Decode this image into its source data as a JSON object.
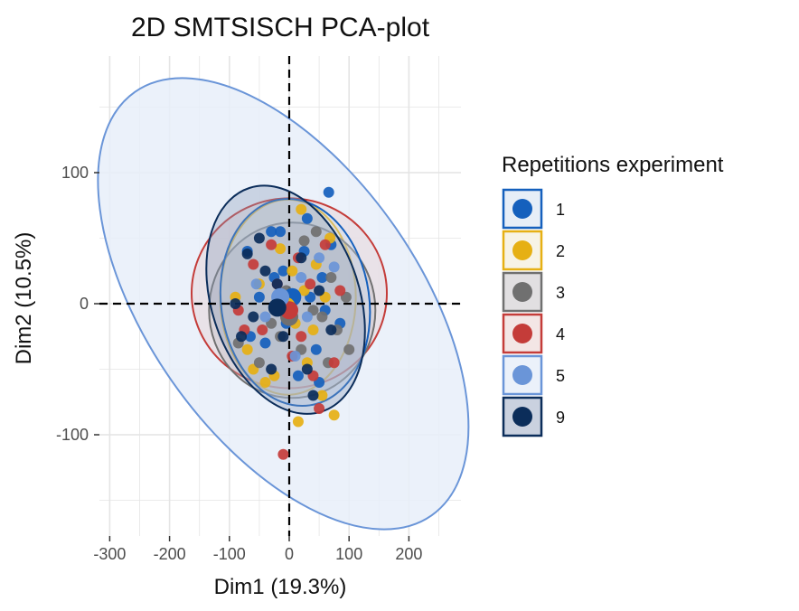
{
  "chart_data": {
    "type": "scatter",
    "title": "2D SMTSISCH PCA-plot",
    "xlabel": "Dim1 (19.3%)",
    "ylabel": "Dim2 (10.5%)",
    "xlim": [
      -305,
      280
    ],
    "ylim": [
      -180,
      192
    ],
    "x_ticks": [
      -300,
      -200,
      -100,
      0,
      100,
      200
    ],
    "y_ticks": [
      -100,
      0,
      100
    ],
    "grid": true,
    "legend": {
      "title": "Repetitions experiment",
      "placement": "right",
      "entries": [
        {
          "label": "1",
          "color": "#1560bd"
        },
        {
          "label": "2",
          "color": "#e6b014"
        },
        {
          "label": "3",
          "color": "#707070"
        },
        {
          "label": "4",
          "color": "#c43c39"
        },
        {
          "label": "5",
          "color": "#6a95d8"
        },
        {
          "label": "9",
          "color": "#0b2d5a"
        }
      ]
    },
    "series": [
      {
        "name": "1",
        "color": "#1560bd",
        "fill": "#c9d9ee",
        "centroid": [
          5,
          5
        ],
        "ellipse": {
          "cx": 10,
          "cy": 1,
          "rx": 82,
          "ry": 115,
          "angle": -8
        },
        "points": [
          [
            66,
            85
          ],
          [
            -50,
            5
          ],
          [
            -65,
            -25
          ],
          [
            -15,
            55
          ],
          [
            25,
            40
          ],
          [
            35,
            5
          ],
          [
            55,
            20
          ],
          [
            -40,
            -30
          ],
          [
            70,
            45
          ],
          [
            -5,
            -15
          ],
          [
            45,
            -35
          ],
          [
            -25,
            20
          ],
          [
            85,
            -15
          ],
          [
            15,
            -55
          ],
          [
            -70,
            40
          ],
          [
            30,
            65
          ],
          [
            -10,
            25
          ],
          [
            60,
            -5
          ],
          [
            -30,
            55
          ],
          [
            50,
            -60
          ]
        ]
      },
      {
        "name": "2",
        "color": "#e6b014",
        "fill": "#ede4c6",
        "centroid": [
          -5,
          -2
        ],
        "ellipse": {
          "cx": -2,
          "cy": 5,
          "rx": 75,
          "ry": 108,
          "angle": 0
        },
        "points": [
          [
            20,
            72
          ],
          [
            -50,
            15
          ],
          [
            40,
            -20
          ],
          [
            -60,
            -50
          ],
          [
            5,
            25
          ],
          [
            -25,
            -55
          ],
          [
            68,
            50
          ],
          [
            -15,
            42
          ],
          [
            55,
            -70
          ],
          [
            -90,
            5
          ],
          [
            30,
            -45
          ],
          [
            15,
            -90
          ],
          [
            75,
            -85
          ],
          [
            -40,
            -60
          ],
          [
            10,
            -15
          ],
          [
            45,
            30
          ],
          [
            -70,
            -35
          ],
          [
            25,
            10
          ],
          [
            -20,
            -5
          ],
          [
            60,
            5
          ]
        ]
      },
      {
        "name": "3",
        "color": "#707070",
        "fill": "#bdb8bc",
        "centroid": [
          0,
          -10
        ],
        "ellipse": {
          "cx": 5,
          "cy": -5,
          "rx": 92,
          "ry": 97,
          "angle": 0
        },
        "points": [
          [
            80,
            -20
          ],
          [
            95,
            5
          ],
          [
            -30,
            -15
          ],
          [
            45,
            55
          ],
          [
            65,
            -45
          ],
          [
            -15,
            -25
          ],
          [
            25,
            48
          ],
          [
            -85,
            -30
          ],
          [
            55,
            -10
          ],
          [
            -5,
            10
          ],
          [
            100,
            -35
          ],
          [
            40,
            -5
          ],
          [
            -50,
            -45
          ],
          [
            70,
            20
          ],
          [
            20,
            -35
          ]
        ]
      },
      {
        "name": "4",
        "color": "#c43c39",
        "fill": "#e4c7c6",
        "centroid": [
          0,
          -5
        ],
        "ellipse": {
          "cx": 0,
          "cy": 8,
          "rx": 108,
          "ry": 105,
          "angle": 0
        },
        "points": [
          [
            -10,
            -115
          ],
          [
            60,
            45
          ],
          [
            -45,
            -20
          ],
          [
            20,
            -25
          ],
          [
            -85,
            -5
          ],
          [
            35,
            15
          ],
          [
            -30,
            45
          ],
          [
            75,
            -45
          ],
          [
            5,
            -40
          ],
          [
            -60,
            30
          ],
          [
            50,
            -80
          ],
          [
            -20,
            15
          ],
          [
            85,
            10
          ],
          [
            15,
            35
          ],
          [
            -75,
            -20
          ],
          [
            40,
            -55
          ]
        ]
      },
      {
        "name": "5",
        "color": "#6a95d8",
        "fill": "#e8eff9",
        "centroid": [
          -15,
          5
        ],
        "ellipse": {
          "cx": -10,
          "cy": 0,
          "rx": 286,
          "ry": 150,
          "angle": 55
        },
        "points": [
          [
            75,
            28
          ],
          [
            -20,
            5
          ],
          [
            10,
            -40
          ],
          [
            -55,
            15
          ],
          [
            30,
            -10
          ],
          [
            50,
            35
          ],
          [
            -40,
            -10
          ],
          [
            20,
            20
          ]
        ]
      },
      {
        "name": "9",
        "color": "#0b2d5a",
        "fill": "#8a9ab8",
        "centroid": [
          -20,
          -3
        ],
        "ellipse": {
          "cx": -6,
          "cy": 3,
          "rx": 82,
          "ry": 130,
          "angle": -18
        },
        "points": [
          [
            -70,
            38
          ],
          [
            -40,
            25
          ],
          [
            30,
            -50
          ],
          [
            -90,
            0
          ],
          [
            50,
            10
          ],
          [
            -10,
            -25
          ],
          [
            -60,
            -10
          ],
          [
            20,
            35
          ],
          [
            -30,
            -50
          ],
          [
            70,
            -20
          ],
          [
            -50,
            50
          ],
          [
            5,
            -10
          ],
          [
            -80,
            -25
          ],
          [
            40,
            -70
          ],
          [
            -20,
            15
          ]
        ]
      }
    ]
  }
}
